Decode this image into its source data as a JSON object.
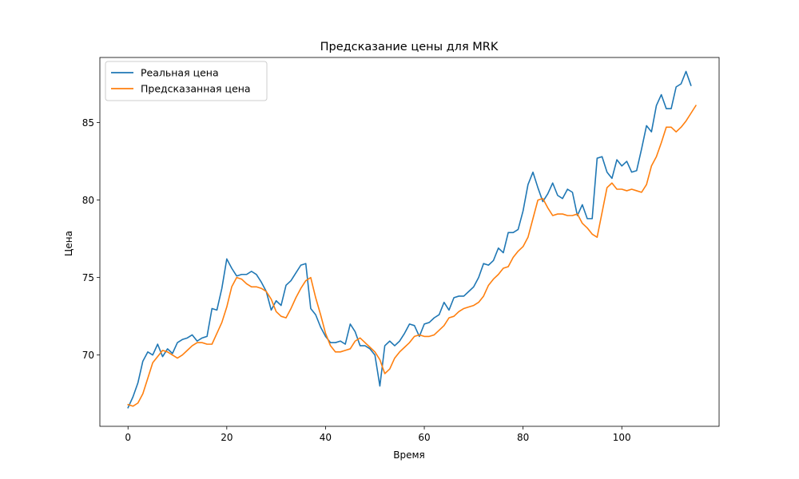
{
  "chart_data": {
    "type": "line",
    "title": "Предсказание цены для MRK",
    "xlabel": "Время",
    "ylabel": "Цена",
    "xlim": [
      -5.7,
      119.7
    ],
    "ylim": [
      65.4,
      89.2
    ],
    "xticks": [
      0,
      20,
      40,
      60,
      80,
      100
    ],
    "yticks": [
      70,
      75,
      80,
      85
    ],
    "grid": false,
    "legend_position": "top-left",
    "series": [
      {
        "name": "Реальная цена",
        "color": "#1f77b4",
        "values": [
          66.6,
          67.3,
          68.2,
          69.6,
          70.2,
          70.0,
          70.7,
          69.9,
          70.4,
          70.1,
          70.8,
          71.0,
          71.1,
          71.3,
          70.9,
          71.1,
          71.2,
          73.0,
          72.9,
          74.3,
          76.2,
          75.6,
          75.1,
          75.2,
          75.2,
          75.4,
          75.2,
          74.7,
          74.1,
          72.9,
          73.5,
          73.2,
          74.5,
          74.8,
          75.3,
          75.8,
          75.9,
          73.0,
          72.6,
          71.8,
          71.2,
          70.8,
          70.8,
          70.9,
          70.7,
          72.0,
          71.5,
          70.6,
          70.6,
          70.4,
          70.0,
          68.0,
          70.6,
          70.9,
          70.6,
          70.9,
          71.4,
          72.0,
          71.9,
          71.2,
          72.0,
          72.1,
          72.4,
          72.6,
          73.4,
          72.9,
          73.7,
          73.8,
          73.8,
          74.1,
          74.4,
          75.0,
          75.9,
          75.8,
          76.1,
          76.9,
          76.6,
          77.9,
          77.9,
          78.1,
          79.3,
          81.0,
          81.8,
          80.8,
          79.9,
          80.4,
          81.1,
          80.3,
          80.1,
          80.7,
          80.5,
          79.0,
          79.7,
          78.8,
          78.8,
          82.7,
          82.8,
          81.8,
          81.4,
          82.6,
          82.2,
          82.5,
          81.8,
          81.9,
          83.3,
          84.8,
          84.4,
          86.1,
          86.8,
          85.9,
          85.9,
          87.3,
          87.5,
          88.3,
          87.4
        ]
      },
      {
        "name": "Предсказанная цена",
        "color": "#ff7f0e",
        "values": [
          66.8,
          66.7,
          66.9,
          67.5,
          68.5,
          69.5,
          69.9,
          70.3,
          70.2,
          70.0,
          69.8,
          70.0,
          70.3,
          70.6,
          70.8,
          70.8,
          70.7,
          70.7,
          71.4,
          72.1,
          73.1,
          74.4,
          75.0,
          74.9,
          74.6,
          74.4,
          74.4,
          74.3,
          74.1,
          73.6,
          72.8,
          72.5,
          72.4,
          73.0,
          73.7,
          74.3,
          74.8,
          75.0,
          73.7,
          72.6,
          71.4,
          70.6,
          70.2,
          70.2,
          70.3,
          70.4,
          70.9,
          71.1,
          70.8,
          70.5,
          70.2,
          69.7,
          68.8,
          69.1,
          69.8,
          70.2,
          70.5,
          70.8,
          71.2,
          71.3,
          71.2,
          71.2,
          71.3,
          71.6,
          71.9,
          72.4,
          72.5,
          72.8,
          73.0,
          73.1,
          73.2,
          73.4,
          73.8,
          74.5,
          74.9,
          75.2,
          75.6,
          75.7,
          76.3,
          76.7,
          77.0,
          77.6,
          78.8,
          80.0,
          80.1,
          79.5,
          79.0,
          79.1,
          79.1,
          79.0,
          79.0,
          79.1,
          78.5,
          78.2,
          77.8,
          77.6,
          79.2,
          80.8,
          81.1,
          80.7,
          80.7,
          80.6,
          80.7,
          80.6,
          80.5,
          81.0,
          82.2,
          82.8,
          83.7,
          84.7,
          84.7,
          84.4,
          84.7,
          85.1,
          85.6,
          86.1
        ]
      }
    ]
  }
}
